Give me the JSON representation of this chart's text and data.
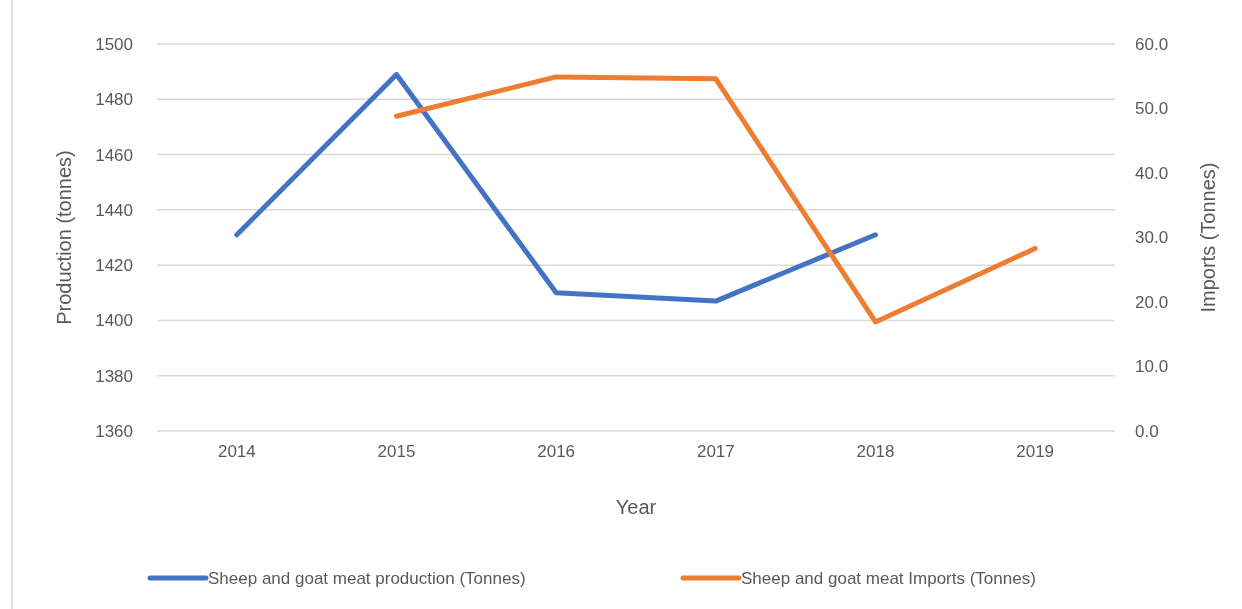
{
  "chart_data": {
    "type": "line",
    "xlabel": "Year",
    "ylabel": "Production (tonnes)",
    "y2label": "Imports (Tonnes)",
    "categories": [
      "2014",
      "2015",
      "2016",
      "2017",
      "2018",
      "2019"
    ],
    "series": [
      {
        "name": "Sheep and goat meat production (Tonnes)",
        "color": "#4472c4",
        "values": [
          1431,
          1489,
          1410,
          1407,
          1431,
          null
        ]
      },
      {
        "name": "Sheep and goat meat Imports (Tonnes)",
        "color": "#ed7d31",
        "axis": "y2",
        "values": [
          null,
          48.8,
          54.9,
          54.6,
          16.9,
          28.3
        ]
      }
    ],
    "ylim": [
      1360,
      1500
    ],
    "yticks": [
      1360,
      1380,
      1400,
      1420,
      1440,
      1460,
      1480,
      1500
    ],
    "y2lim": [
      0,
      60
    ],
    "y2ticks": [
      {
        "value": 0,
        "label": "0.0"
      },
      {
        "value": 10,
        "label": "10.0"
      },
      {
        "value": 20,
        "label": "20.0"
      },
      {
        "value": 30,
        "label": "30.0"
      },
      {
        "value": 40,
        "label": "40.0"
      },
      {
        "value": 50,
        "label": "50.0"
      },
      {
        "value": 60,
        "label": "60.0"
      }
    ],
    "grid": "y",
    "legend": "bottom",
    "line_style": "solid"
  }
}
